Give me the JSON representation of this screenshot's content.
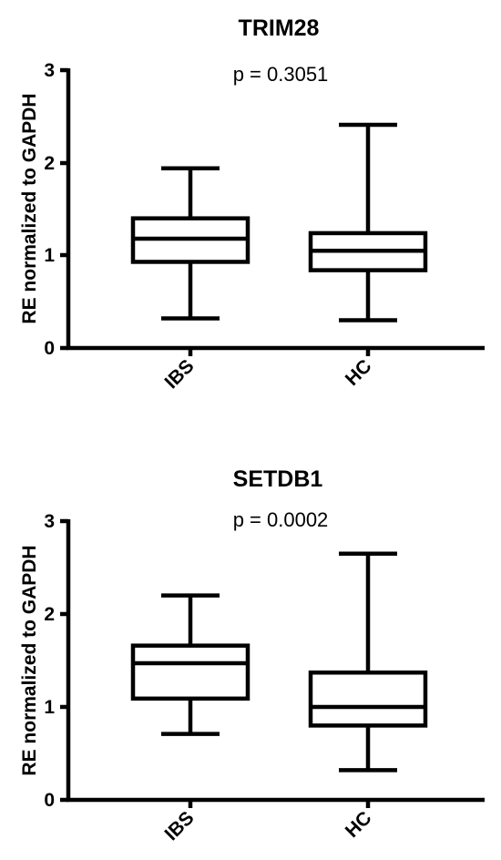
{
  "chart_data": [
    {
      "type": "box",
      "title": "TRIM28",
      "annotation": "p = 0.3051",
      "ylabel": "RE normalized to GAPDH",
      "ylim": [
        0,
        3
      ],
      "yticks": [
        "0",
        "1",
        "2",
        "3"
      ],
      "categories": [
        "IBS",
        "HC"
      ],
      "boxes": [
        {
          "category": "IBS",
          "min": 0.32,
          "q1": 0.93,
          "median": 1.18,
          "q3": 1.4,
          "max": 1.94
        },
        {
          "category": "HC",
          "min": 0.3,
          "q1": 0.84,
          "median": 1.05,
          "q3": 1.24,
          "max": 2.41
        }
      ]
    },
    {
      "type": "box",
      "title": "SETDB1",
      "annotation": "p = 0.0002",
      "ylabel": "RE normalized to GAPDH",
      "ylim": [
        0,
        3
      ],
      "yticks": [
        "0",
        "1",
        "2",
        "3"
      ],
      "categories": [
        "IBS",
        "HC"
      ],
      "boxes": [
        {
          "category": "IBS",
          "min": 0.71,
          "q1": 1.09,
          "median": 1.47,
          "q3": 1.66,
          "max": 2.2
        },
        {
          "category": "HC",
          "min": 0.32,
          "q1": 0.8,
          "median": 1.0,
          "q3": 1.37,
          "max": 2.65
        }
      ]
    }
  ]
}
